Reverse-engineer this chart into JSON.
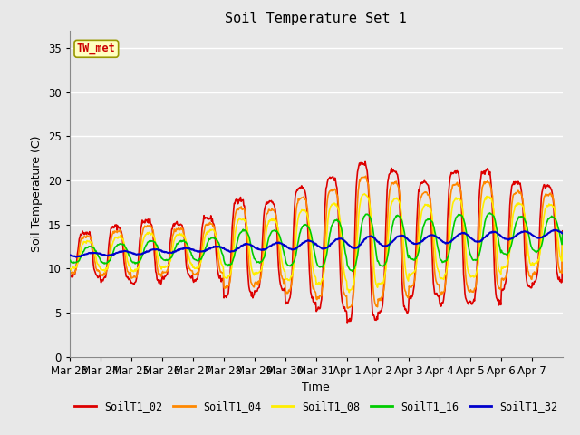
{
  "title": "Soil Temperature Set 1",
  "xlabel": "Time",
  "ylabel": "Soil Temperature (C)",
  "ylim": [
    0,
    37
  ],
  "yticks": [
    0,
    5,
    10,
    15,
    20,
    25,
    30,
    35
  ],
  "annotation_text": "TW_met",
  "annotation_box_color": "#ffffc0",
  "annotation_text_color": "#cc0000",
  "series_colors": {
    "SoilT1_02": "#dd0000",
    "SoilT1_04": "#ff8800",
    "SoilT1_08": "#ffee00",
    "SoilT1_16": "#00cc00",
    "SoilT1_32": "#0000cc"
  },
  "background_color": "#e8e8e8",
  "plot_bg_color": "#e8e8e8",
  "grid_color": "#ffffff",
  "num_days": 16,
  "tick_labels": [
    "Mar 23",
    "Mar 24",
    "Mar 25",
    "Mar 26",
    "Mar 27",
    "Mar 28",
    "Mar 29",
    "Mar 30",
    "Mar 31",
    "Apr 1",
    "Apr 2",
    "Apr 3",
    "Apr 4",
    "Apr 5",
    "Apr 6",
    "Apr 7"
  ],
  "legend_labels": [
    "SoilT1_02",
    "SoilT1_04",
    "SoilT1_08",
    "SoilT1_16",
    "SoilT1_32"
  ]
}
